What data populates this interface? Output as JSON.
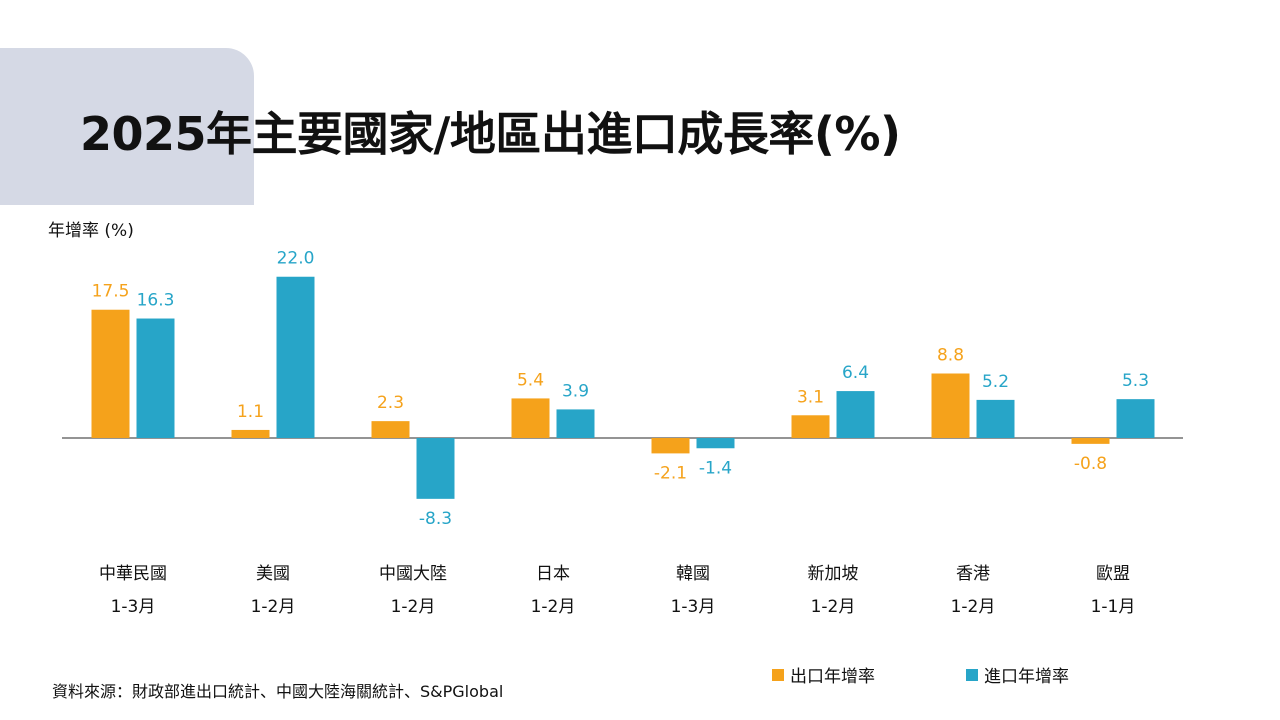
{
  "title": "2025年主要國家/地區出進口成長率(%)",
  "source": "資料來源：財政部進出口統計、中國大陸海關統計、S&PGlobal",
  "chart_data": {
    "type": "bar",
    "ylabel": "年增率 (%)",
    "categories": [
      "中華民國",
      "美國",
      "中國大陸",
      "日本",
      "韓國",
      "新加坡",
      "香港",
      "歐盟"
    ],
    "periods": [
      "1-3月",
      "1-2月",
      "1-2月",
      "1-2月",
      "1-3月",
      "1-2月",
      "1-2月",
      "1-1月"
    ],
    "series": [
      {
        "name": "出口年增率",
        "color": "#f5a21b",
        "values": [
          17.5,
          1.1,
          2.3,
          5.4,
          -2.1,
          3.1,
          8.8,
          -0.8
        ],
        "labels": [
          "17.5",
          "1.1",
          "2.3",
          "5.4",
          "-2.1",
          "3.1",
          "8.8",
          "-0.8"
        ]
      },
      {
        "name": "進口年增率",
        "color": "#27a5c8",
        "values": [
          16.3,
          22.0,
          -8.3,
          3.9,
          -1.4,
          6.4,
          5.2,
          5.3
        ],
        "labels": [
          "16.3",
          "22.0",
          "-8.3",
          "3.9",
          "-1.4",
          "6.4",
          "5.2",
          "5.3"
        ]
      }
    ],
    "grid": false,
    "legend_position": "bottom-right"
  }
}
